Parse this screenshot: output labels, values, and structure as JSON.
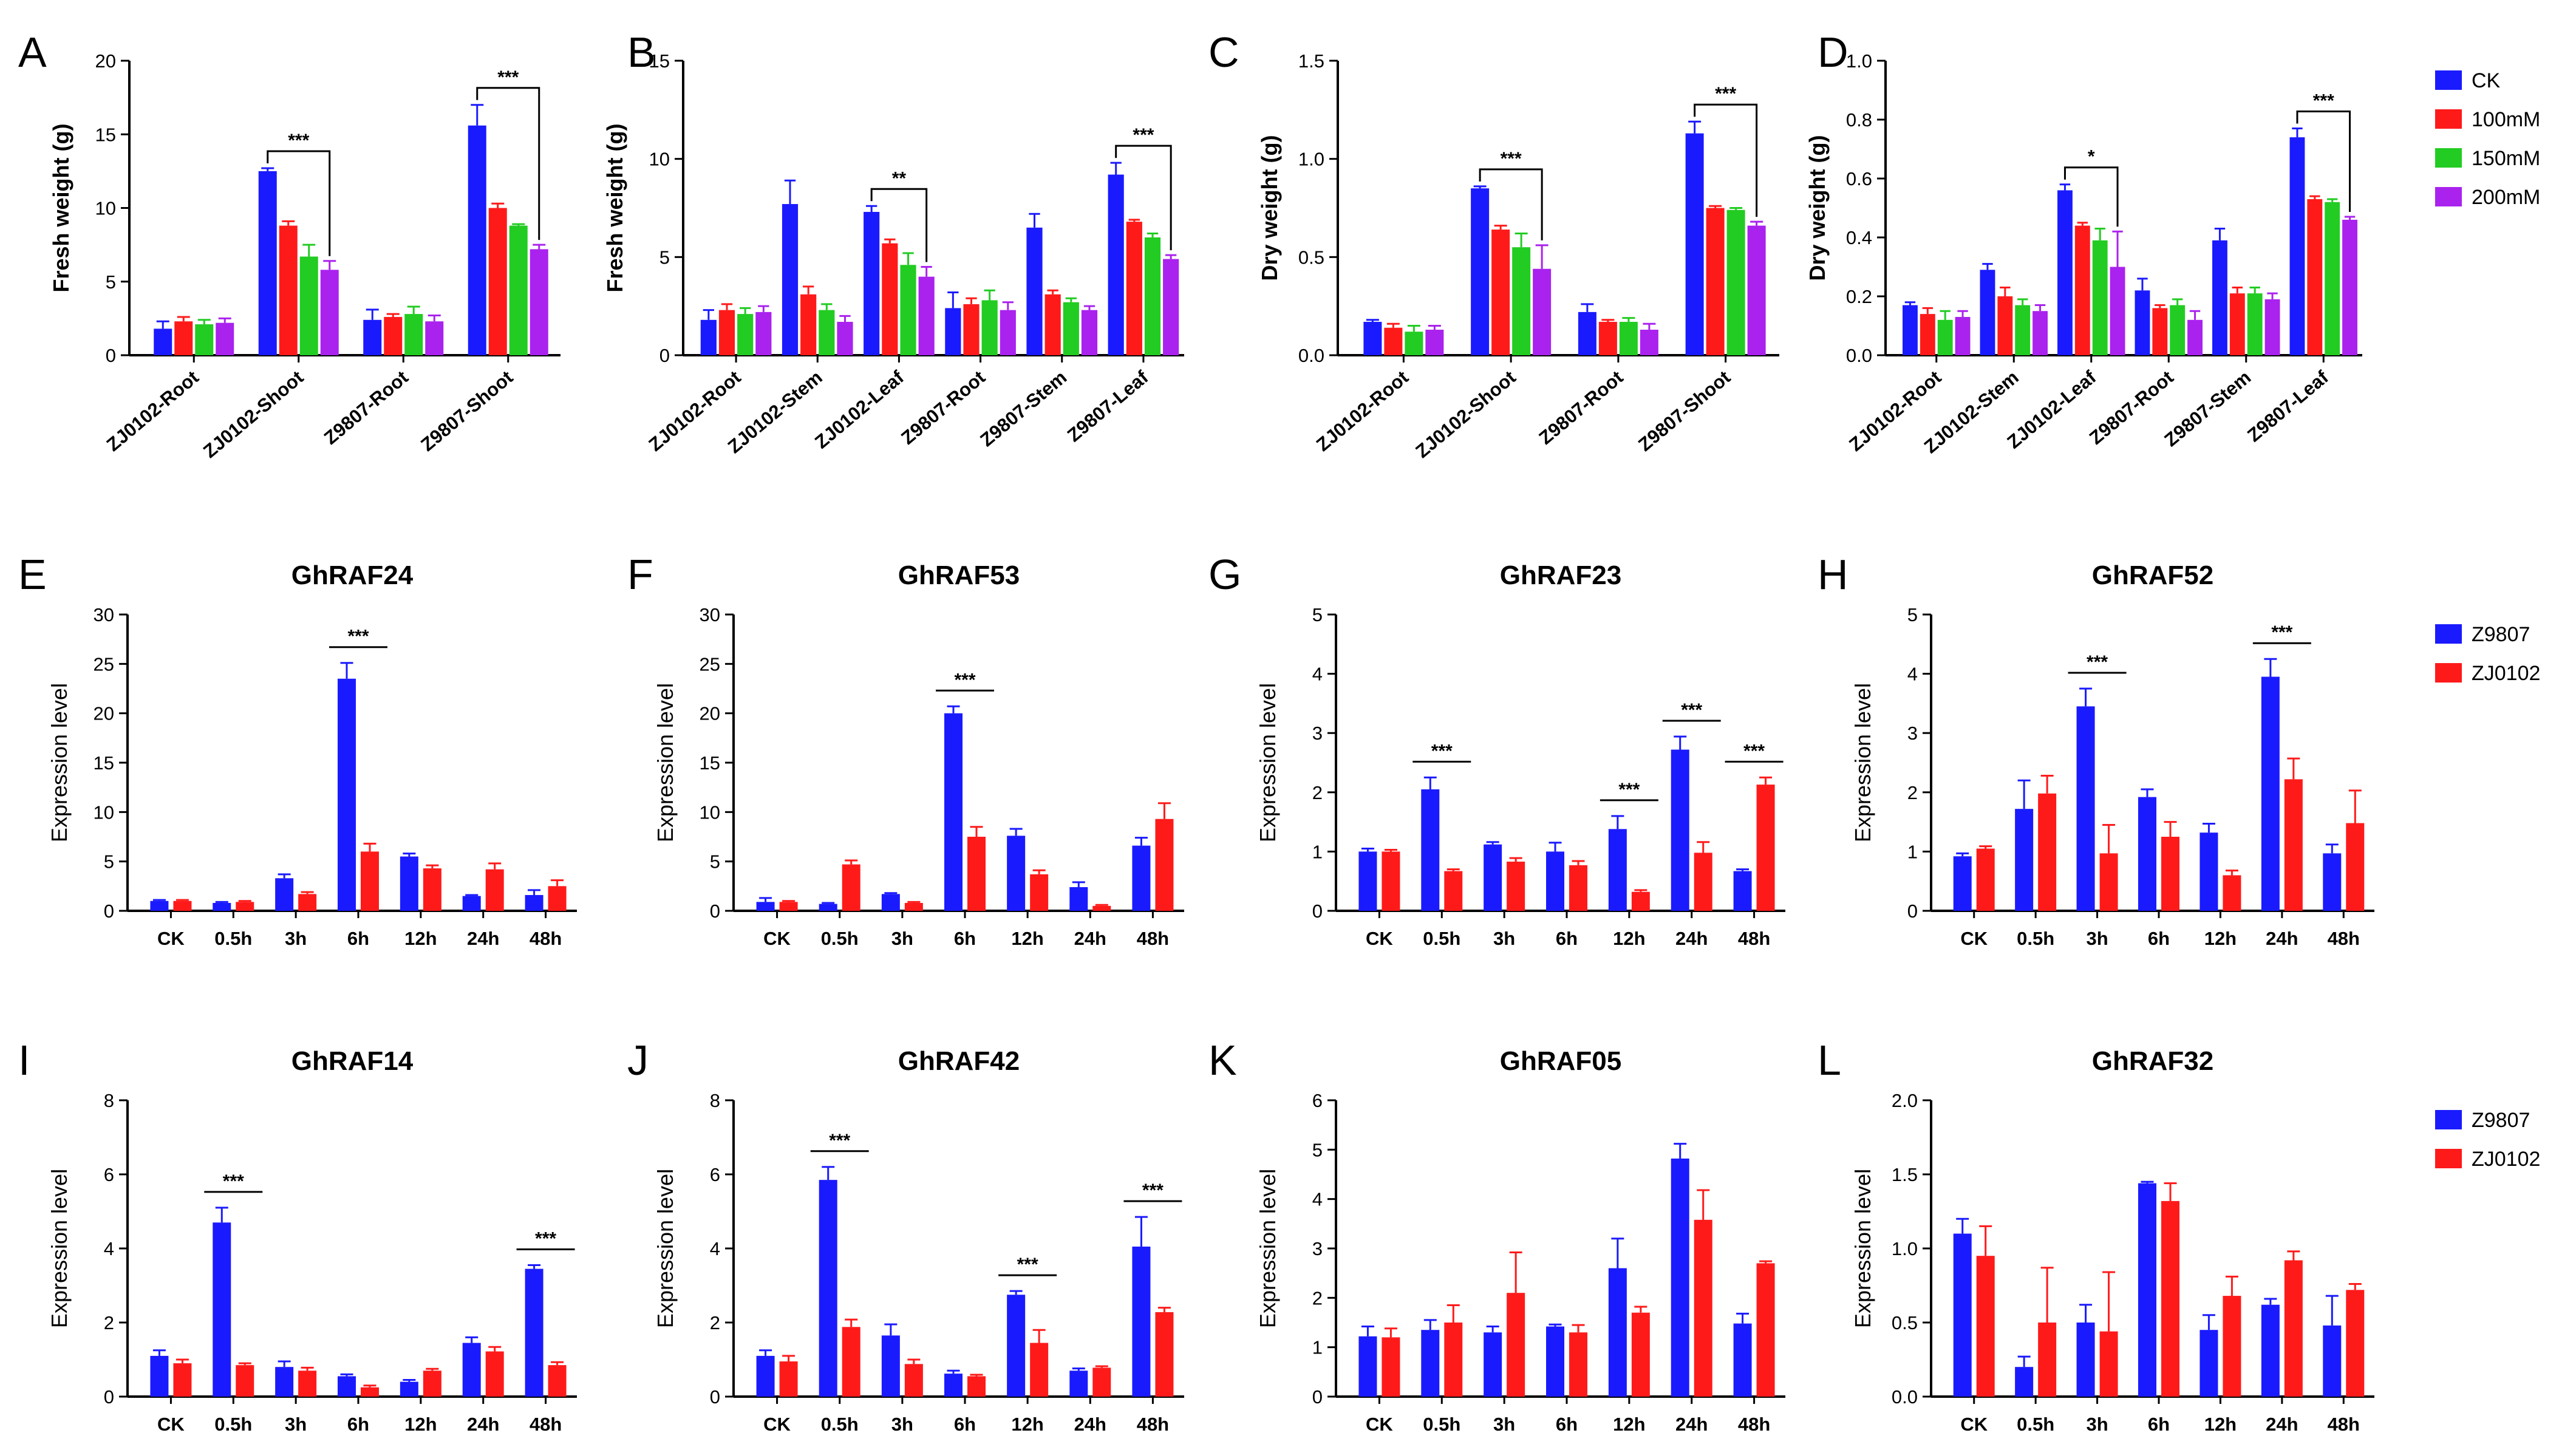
{
  "figure": {
    "legend_salt": {
      "labels": [
        "CK",
        "100mM",
        "150mM",
        "200mM"
      ],
      "colors": [
        "#1a1aff",
        "#ff1a1a",
        "#22cc22",
        "#aa22ee"
      ]
    },
    "legend_lines_1": {
      "labels": [
        "Z9807",
        "ZJ0102"
      ],
      "colors": [
        "#1a1aff",
        "#ff1a1a"
      ]
    },
    "legend_lines_2": {
      "labels": [
        "Z9807",
        "ZJ0102"
      ],
      "colors": [
        "#1a1aff",
        "#ff1a1a"
      ]
    }
  },
  "chart_data": [
    {
      "id": "A",
      "type": "bar",
      "title": "",
      "ylabel": "Fresh weight (g)",
      "xlabel": "",
      "ylim": [
        0,
        20
      ],
      "yticks": [
        "0",
        "5",
        "10",
        "15",
        "20"
      ],
      "categories": [
        "ZJ0102-Root",
        "ZJ0102-Shoot",
        "Z9807-Root",
        "Z9807-Shoot"
      ],
      "series": [
        {
          "name": "CK",
          "values": [
            1.8,
            12.5,
            2.4,
            15.6
          ],
          "errors": [
            0.5,
            0.2,
            0.7,
            1.4
          ]
        },
        {
          "name": "100mM",
          "values": [
            2.3,
            8.8,
            2.6,
            10.0
          ],
          "errors": [
            0.3,
            0.3,
            0.2,
            0.3
          ]
        },
        {
          "name": "150mM",
          "values": [
            2.1,
            6.7,
            2.8,
            8.8
          ],
          "errors": [
            0.3,
            0.8,
            0.5,
            0.1
          ]
        },
        {
          "name": "200mM",
          "values": [
            2.2,
            5.8,
            2.3,
            7.2
          ],
          "errors": [
            0.3,
            0.6,
            0.4,
            0.3
          ]
        }
      ],
      "significance": [
        {
          "group": 1,
          "label": "***"
        },
        {
          "group": 3,
          "label": "***"
        }
      ]
    },
    {
      "id": "B",
      "type": "bar",
      "title": "",
      "ylabel": "Fresh weight (g)",
      "xlabel": "",
      "ylim": [
        0,
        15
      ],
      "yticks": [
        "0",
        "5",
        "10",
        "15"
      ],
      "categories": [
        "ZJ0102-Root",
        "ZJ0102-Stem",
        "ZJ0102-Leaf",
        "Z9807-Root",
        "Z9807-Stem",
        "Z9807-Leaf"
      ],
      "series": [
        {
          "name": "CK",
          "values": [
            1.8,
            7.7,
            7.3,
            2.4,
            6.5,
            9.2
          ],
          "errors": [
            0.5,
            1.2,
            0.3,
            0.8,
            0.7,
            0.6
          ]
        },
        {
          "name": "100mM",
          "values": [
            2.3,
            3.1,
            5.7,
            2.6,
            3.1,
            6.8
          ],
          "errors": [
            0.3,
            0.4,
            0.2,
            0.3,
            0.2,
            0.1
          ]
        },
        {
          "name": "150mM",
          "values": [
            2.1,
            2.3,
            4.6,
            2.8,
            2.7,
            6.0
          ],
          "errors": [
            0.3,
            0.3,
            0.6,
            0.5,
            0.2,
            0.2
          ]
        },
        {
          "name": "200mM",
          "values": [
            2.2,
            1.7,
            4.0,
            2.3,
            2.3,
            4.9
          ],
          "errors": [
            0.3,
            0.3,
            0.5,
            0.4,
            0.2,
            0.2
          ]
        }
      ],
      "significance": [
        {
          "group": 2,
          "label": "**"
        },
        {
          "group": 5,
          "label": "***"
        }
      ]
    },
    {
      "id": "C",
      "type": "bar",
      "title": "",
      "ylabel": "Dry weight (g)",
      "xlabel": "",
      "ylim": [
        0,
        1.5
      ],
      "yticks": [
        "0.0",
        "0.5",
        "1.0",
        "1.5"
      ],
      "categories": [
        "ZJ0102-Root",
        "ZJ0102-Shoot",
        "Z9807-Root",
        "Z9807-Shoot"
      ],
      "series": [
        {
          "name": "CK",
          "values": [
            0.17,
            0.85,
            0.22,
            1.13
          ],
          "errors": [
            0.01,
            0.01,
            0.04,
            0.06
          ]
        },
        {
          "name": "100mM",
          "values": [
            0.14,
            0.64,
            0.17,
            0.75
          ],
          "errors": [
            0.02,
            0.02,
            0.01,
            0.01
          ]
        },
        {
          "name": "150mM",
          "values": [
            0.12,
            0.55,
            0.17,
            0.74
          ],
          "errors": [
            0.03,
            0.07,
            0.02,
            0.01
          ]
        },
        {
          "name": "200mM",
          "values": [
            0.13,
            0.44,
            0.13,
            0.66
          ],
          "errors": [
            0.02,
            0.12,
            0.03,
            0.02
          ]
        }
      ],
      "significance": [
        {
          "group": 1,
          "label": "***"
        },
        {
          "group": 3,
          "label": "***"
        }
      ]
    },
    {
      "id": "D",
      "type": "bar",
      "title": "",
      "ylabel": "Dry weight (g)",
      "xlabel": "",
      "ylim": [
        0,
        1.0
      ],
      "yticks": [
        "0.0",
        "0.2",
        "0.4",
        "0.6",
        "0.8",
        "1.0"
      ],
      "categories": [
        "ZJ0102-Root",
        "ZJ0102-Stem",
        "ZJ0102-Leaf",
        "Z9807-Root",
        "Z9807-Stem",
        "Z9807-Leaf"
      ],
      "series": [
        {
          "name": "CK",
          "values": [
            0.17,
            0.29,
            0.56,
            0.22,
            0.39,
            0.74
          ],
          "errors": [
            0.01,
            0.02,
            0.02,
            0.04,
            0.04,
            0.03
          ]
        },
        {
          "name": "100mM",
          "values": [
            0.14,
            0.2,
            0.44,
            0.16,
            0.21,
            0.53
          ],
          "errors": [
            0.02,
            0.03,
            0.01,
            0.01,
            0.02,
            0.01
          ]
        },
        {
          "name": "150mM",
          "values": [
            0.12,
            0.17,
            0.39,
            0.17,
            0.21,
            0.52
          ],
          "errors": [
            0.03,
            0.02,
            0.04,
            0.02,
            0.02,
            0.01
          ]
        },
        {
          "name": "200mM",
          "values": [
            0.13,
            0.15,
            0.3,
            0.12,
            0.19,
            0.46
          ],
          "errors": [
            0.02,
            0.02,
            0.12,
            0.03,
            0.02,
            0.01
          ]
        }
      ],
      "significance": [
        {
          "group": 2,
          "label": "*"
        },
        {
          "group": 5,
          "label": "***"
        }
      ]
    },
    {
      "id": "E",
      "type": "bar",
      "title": "GhRAF24",
      "ylabel": "Expression level",
      "xlabel": "",
      "ylim": [
        0,
        30
      ],
      "yticks": [
        "0",
        "5",
        "10",
        "15",
        "20",
        "25",
        "30"
      ],
      "categories": [
        "CK",
        "0.5h",
        "3h",
        "6h",
        "12h",
        "24h",
        "48h"
      ],
      "series": [
        {
          "name": "Z9807",
          "values": [
            1.0,
            0.8,
            3.3,
            23.5,
            5.5,
            1.5,
            1.6
          ],
          "errors": [
            0.1,
            0.1,
            0.4,
            1.6,
            0.3,
            0.1,
            0.5
          ]
        },
        {
          "name": "ZJ0102",
          "values": [
            1.0,
            0.9,
            1.7,
            6.0,
            4.3,
            4.2,
            2.5
          ],
          "errors": [
            0.1,
            0.1,
            0.2,
            0.8,
            0.3,
            0.6,
            0.6
          ]
        }
      ],
      "significance": [
        {
          "group": 3,
          "label": "***"
        }
      ]
    },
    {
      "id": "F",
      "type": "bar",
      "title": "GhRAF53",
      "ylabel": "Expression level",
      "xlabel": "",
      "ylim": [
        0,
        30
      ],
      "yticks": [
        "0",
        "5",
        "10",
        "15",
        "20",
        "25",
        "30"
      ],
      "categories": [
        "CK",
        "0.5h",
        "3h",
        "6h",
        "12h",
        "24h",
        "48h"
      ],
      "series": [
        {
          "name": "Z9807",
          "values": [
            0.9,
            0.7,
            1.7,
            20.0,
            7.6,
            2.4,
            6.6
          ],
          "errors": [
            0.4,
            0.1,
            0.1,
            0.7,
            0.7,
            0.5,
            0.8
          ]
        },
        {
          "name": "ZJ0102",
          "values": [
            0.9,
            4.7,
            0.8,
            7.5,
            3.7,
            0.5,
            9.3
          ],
          "errors": [
            0.1,
            0.4,
            0.1,
            1.0,
            0.4,
            0.1,
            1.6
          ]
        }
      ],
      "significance": [
        {
          "group": 3,
          "label": "***"
        }
      ]
    },
    {
      "id": "G",
      "type": "bar",
      "title": "GhRAF23",
      "ylabel": "Expression level",
      "xlabel": "",
      "ylim": [
        0,
        5
      ],
      "yticks": [
        "0",
        "1",
        "2",
        "3",
        "4",
        "5"
      ],
      "categories": [
        "CK",
        "0.5h",
        "3h",
        "6h",
        "12h",
        "24h",
        "48h"
      ],
      "series": [
        {
          "name": "Z9807",
          "values": [
            1.0,
            2.05,
            1.12,
            1.0,
            1.38,
            2.72,
            0.67
          ],
          "errors": [
            0.05,
            0.2,
            0.04,
            0.15,
            0.22,
            0.22,
            0.03
          ]
        },
        {
          "name": "ZJ0102",
          "values": [
            1.0,
            0.67,
            0.83,
            0.77,
            0.32,
            0.98,
            2.13
          ],
          "errors": [
            0.03,
            0.03,
            0.06,
            0.07,
            0.03,
            0.18,
            0.12
          ]
        }
      ],
      "significance": [
        {
          "group": 1,
          "label": "***"
        },
        {
          "group": 4,
          "label": "***"
        },
        {
          "group": 5,
          "label": "***"
        },
        {
          "group": 6,
          "label": "***"
        }
      ]
    },
    {
      "id": "H",
      "type": "bar",
      "title": "GhRAF52",
      "ylabel": "Expression level",
      "xlabel": "",
      "ylim": [
        0,
        5
      ],
      "yticks": [
        "0",
        "1",
        "2",
        "3",
        "4",
        "5"
      ],
      "categories": [
        "CK",
        "0.5h",
        "3h",
        "6h",
        "12h",
        "24h",
        "48h"
      ],
      "series": [
        {
          "name": "Z9807",
          "values": [
            0.92,
            1.72,
            3.45,
            1.92,
            1.32,
            3.95,
            0.97
          ],
          "errors": [
            0.05,
            0.48,
            0.3,
            0.13,
            0.15,
            0.3,
            0.15
          ]
        },
        {
          "name": "ZJ0102",
          "values": [
            1.05,
            1.98,
            0.97,
            1.25,
            0.6,
            2.22,
            1.48
          ],
          "errors": [
            0.04,
            0.3,
            0.48,
            0.25,
            0.08,
            0.35,
            0.55
          ]
        }
      ],
      "significance": [
        {
          "group": 2,
          "label": "***"
        },
        {
          "group": 5,
          "label": "***"
        }
      ]
    },
    {
      "id": "I",
      "type": "bar",
      "title": "GhRAF14",
      "ylabel": "Expression level",
      "xlabel": "",
      "ylim": [
        0,
        8
      ],
      "yticks": [
        "0",
        "2",
        "4",
        "6",
        "8"
      ],
      "categories": [
        "CK",
        "0.5h",
        "3h",
        "6h",
        "12h",
        "24h",
        "48h"
      ],
      "series": [
        {
          "name": "Z9807",
          "values": [
            1.1,
            4.7,
            0.8,
            0.55,
            0.4,
            1.45,
            3.45
          ],
          "errors": [
            0.15,
            0.4,
            0.15,
            0.05,
            0.05,
            0.15,
            0.1
          ]
        },
        {
          "name": "ZJ0102",
          "values": [
            0.9,
            0.85,
            0.7,
            0.25,
            0.7,
            1.22,
            0.85
          ],
          "errors": [
            0.1,
            0.05,
            0.08,
            0.05,
            0.05,
            0.12,
            0.08
          ]
        }
      ],
      "significance": [
        {
          "group": 1,
          "label": "***"
        },
        {
          "group": 6,
          "label": "***"
        }
      ]
    },
    {
      "id": "J",
      "type": "bar",
      "title": "GhRAF42",
      "ylabel": "Expression level",
      "xlabel": "",
      "ylim": [
        0,
        8
      ],
      "yticks": [
        "0",
        "2",
        "4",
        "6",
        "8"
      ],
      "categories": [
        "CK",
        "0.5h",
        "3h",
        "6h",
        "12h",
        "24h",
        "48h"
      ],
      "series": [
        {
          "name": "Z9807",
          "values": [
            1.1,
            5.85,
            1.65,
            0.62,
            2.75,
            0.7,
            4.05
          ],
          "errors": [
            0.15,
            0.35,
            0.3,
            0.08,
            0.1,
            0.06,
            0.8
          ]
        },
        {
          "name": "ZJ0102",
          "values": [
            0.95,
            1.88,
            0.88,
            0.55,
            1.45,
            0.78,
            2.28
          ],
          "errors": [
            0.15,
            0.2,
            0.12,
            0.04,
            0.35,
            0.04,
            0.12
          ]
        }
      ],
      "significance": [
        {
          "group": 1,
          "label": "***"
        },
        {
          "group": 4,
          "label": "***"
        },
        {
          "group": 6,
          "label": "***"
        }
      ]
    },
    {
      "id": "K",
      "type": "bar",
      "title": "GhRAF05",
      "ylabel": "Expression level",
      "xlabel": "",
      "ylim": [
        0,
        6
      ],
      "yticks": [
        "0",
        "1",
        "2",
        "3",
        "4",
        "5",
        "6"
      ],
      "categories": [
        "CK",
        "0.5h",
        "3h",
        "6h",
        "12h",
        "24h",
        "48h"
      ],
      "series": [
        {
          "name": "Z9807",
          "values": [
            1.22,
            1.35,
            1.3,
            1.42,
            2.6,
            4.82,
            1.48
          ],
          "errors": [
            0.2,
            0.2,
            0.12,
            0.04,
            0.6,
            0.3,
            0.2
          ]
        },
        {
          "name": "ZJ0102",
          "values": [
            1.2,
            1.5,
            2.1,
            1.3,
            1.7,
            3.58,
            2.7
          ],
          "errors": [
            0.18,
            0.35,
            0.82,
            0.15,
            0.12,
            0.6,
            0.04
          ]
        }
      ],
      "significance": []
    },
    {
      "id": "L",
      "type": "bar",
      "title": "GhRAF32",
      "ylabel": "Expression level",
      "xlabel": "",
      "ylim": [
        0,
        2.0
      ],
      "yticks": [
        "0.0",
        "0.5",
        "1.0",
        "1.5",
        "2.0"
      ],
      "categories": [
        "CK",
        "0.5h",
        "3h",
        "6h",
        "12h",
        "24h",
        "48h"
      ],
      "series": [
        {
          "name": "Z9807",
          "values": [
            1.1,
            0.2,
            0.5,
            1.44,
            0.45,
            0.62,
            0.48
          ],
          "errors": [
            0.1,
            0.07,
            0.12,
            0.01,
            0.1,
            0.04,
            0.2
          ]
        },
        {
          "name": "ZJ0102",
          "values": [
            0.95,
            0.5,
            0.44,
            1.32,
            0.68,
            0.92,
            0.72
          ],
          "errors": [
            0.2,
            0.37,
            0.4,
            0.12,
            0.13,
            0.06,
            0.04
          ]
        }
      ],
      "significance": []
    }
  ]
}
